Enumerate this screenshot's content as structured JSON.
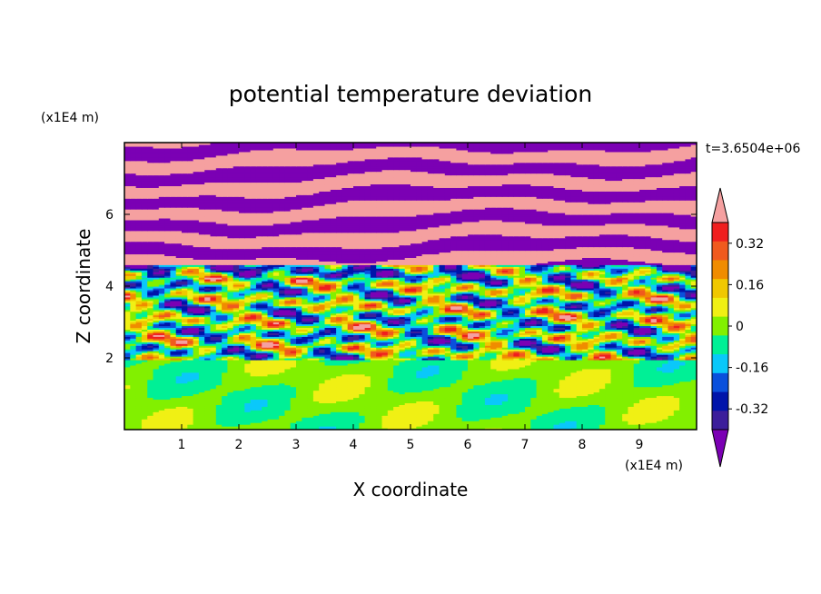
{
  "chart_data": {
    "type": "heatmap",
    "title": "potential temperature deviation",
    "xlabel": "X coordinate",
    "ylabel": "Z coordinate",
    "x_unit": "(x1E4 m)",
    "y_unit": "(x1E4 m)",
    "time_label": "t=3.6504e+06",
    "xlim": [
      0,
      10
    ],
    "ylim": [
      0,
      8
    ],
    "x_ticks": [
      "1",
      "2",
      "3",
      "4",
      "5",
      "6",
      "7",
      "8",
      "9"
    ],
    "y_ticks": [
      "2",
      "4",
      "6"
    ],
    "colorbar": {
      "levels": [
        -0.48,
        -0.4,
        -0.32,
        -0.24,
        -0.16,
        -0.08,
        0,
        0.08,
        0.16,
        0.24,
        0.32,
        0.4,
        0.48
      ],
      "colors": [
        "#7b00b4",
        "#3c1e9b",
        "#0014aa",
        "#0a50dc",
        "#0ac8fa",
        "#00f096",
        "#82f000",
        "#f0f014",
        "#f0c800",
        "#f08c00",
        "#f05a1e",
        "#f01e1e",
        "#f5a0a0"
      ],
      "tick_labels": [
        "0.32",
        "0.16",
        "0",
        "-0.16",
        "-0.32"
      ],
      "tick_values": [
        0.32,
        0.16,
        0,
        -0.16,
        -0.32
      ],
      "extend": "both"
    }
  }
}
